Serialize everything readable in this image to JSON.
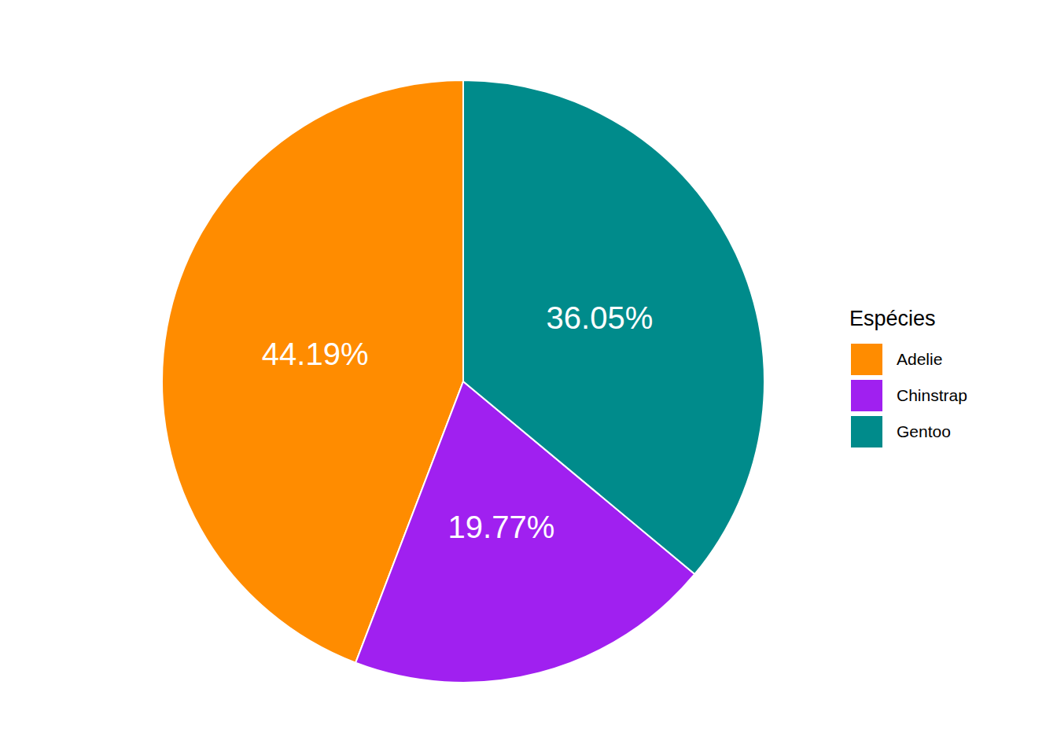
{
  "chart_data": {
    "type": "pie",
    "legend_title": "Espécies",
    "categories": [
      "Adelie",
      "Chinstrap",
      "Gentoo"
    ],
    "values": [
      44.19,
      19.77,
      36.05
    ],
    "value_labels": [
      "44.19%",
      "19.77%",
      "36.05%"
    ],
    "colors": [
      "#ff8c00",
      "#a020f0",
      "#008b8b"
    ],
    "data_labels": true,
    "legend": "right"
  }
}
